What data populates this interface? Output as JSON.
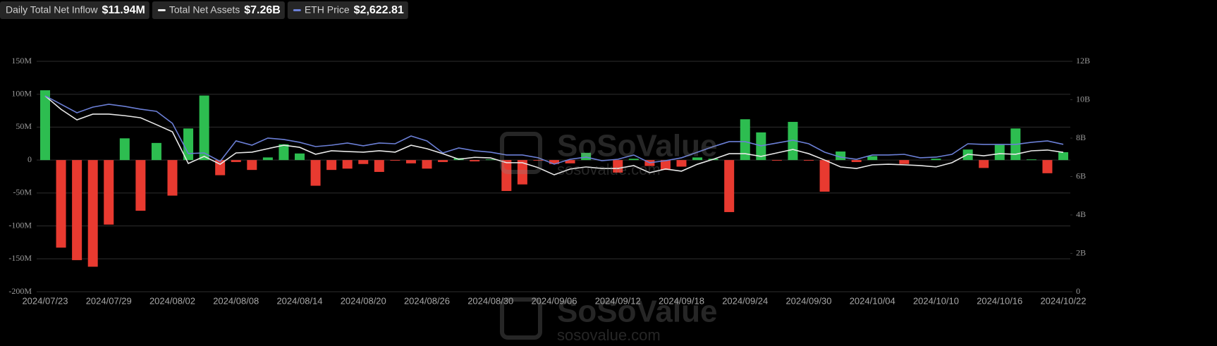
{
  "chart_data": {
    "type": "bar",
    "legend": [
      {
        "label": "Daily Total Net Inflow",
        "value": "$11.94M"
      },
      {
        "label": "Total Net Assets",
        "value": "$7.26B"
      },
      {
        "label": "ETH Price",
        "value": "$2,622.81"
      }
    ],
    "watermark": "SoSoValue",
    "watermark_url": "sosovalue.com",
    "categories": [
      "2024/07/23",
      null,
      null,
      null,
      "2024/07/29",
      null,
      null,
      null,
      "2024/08/02",
      null,
      null,
      null,
      "2024/08/08",
      null,
      null,
      null,
      "2024/08/14",
      null,
      null,
      null,
      "2024/08/20",
      null,
      null,
      null,
      "2024/08/26",
      null,
      null,
      null,
      "2024/08/30",
      null,
      null,
      null,
      "2024/09/06",
      null,
      null,
      null,
      "2024/09/12",
      null,
      null,
      null,
      "2024/09/18",
      null,
      null,
      null,
      "2024/09/24",
      null,
      null,
      null,
      "2024/09/30",
      null,
      null,
      null,
      "2024/10/04",
      null,
      null,
      null,
      "2024/10/10",
      null,
      null,
      null,
      "2024/10/16",
      null,
      null,
      null,
      "2024/10/22"
    ],
    "positive_color": "#2dbd50",
    "negative_color": "#e83a30",
    "series": [
      {
        "name": "Daily Total Net Inflow",
        "axis": "y",
        "values": [
          106,
          -133,
          -152,
          -162,
          -98,
          33,
          -77,
          26,
          -54,
          48,
          98,
          -23,
          -3,
          -15,
          4,
          24,
          10,
          -39,
          -15,
          -13,
          -6,
          -18,
          -1,
          -5,
          -13,
          -3,
          3,
          -2,
          1,
          -47,
          -37,
          -1,
          -6,
          -5,
          11,
          0,
          -19,
          2,
          -9,
          -15,
          -10,
          4,
          2,
          -79,
          62,
          42,
          -1,
          58,
          -1,
          -48,
          13,
          -3,
          6,
          0,
          -6,
          0,
          2,
          0,
          16,
          -12,
          23,
          48,
          1,
          -20,
          11.94
        ]
      },
      {
        "name": "Total Net Assets",
        "axis": "y2",
        "color": "#e8e8e8",
        "values": [
          10.2,
          9.5,
          8.95,
          9.25,
          9.25,
          9.17,
          9.06,
          8.7,
          8.33,
          6.68,
          7.05,
          6.64,
          7.23,
          7.27,
          7.45,
          7.63,
          7.52,
          7.16,
          7.34,
          7.3,
          7.27,
          7.34,
          7.27,
          7.63,
          7.45,
          7.19,
          6.9,
          7.0,
          6.97,
          6.72,
          6.72,
          6.46,
          6.09,
          6.39,
          6.5,
          6.42,
          6.42,
          6.57,
          6.2,
          6.39,
          6.28,
          6.64,
          6.9,
          7.19,
          7.19,
          7.05,
          7.23,
          7.41,
          7.19,
          6.86,
          6.5,
          6.42,
          6.61,
          6.64,
          6.61,
          6.57,
          6.5,
          6.72,
          7.16,
          7.08,
          7.19,
          7.16,
          7.34,
          7.38,
          7.26
        ]
      },
      {
        "name": "ETH Price",
        "axis": "y3",
        "color": "#6b7fd6",
        "values": [
          3486,
          3336,
          3185,
          3285,
          3336,
          3298,
          3248,
          3210,
          2997,
          2458,
          2470,
          2320,
          2684,
          2608,
          2734,
          2709,
          2659,
          2583,
          2608,
          2646,
          2596,
          2646,
          2633,
          2771,
          2684,
          2470,
          2558,
          2508,
          2483,
          2433,
          2433,
          2383,
          2270,
          2357,
          2395,
          2332,
          2357,
          2433,
          2295,
          2332,
          2383,
          2483,
          2583,
          2671,
          2671,
          2596,
          2646,
          2696,
          2633,
          2483,
          2395,
          2357,
          2433,
          2433,
          2445,
          2383,
          2395,
          2445,
          2633,
          2621,
          2621,
          2621,
          2659,
          2684,
          2622.81
        ]
      }
    ],
    "ylim": [
      -200,
      150
    ],
    "yticks": [
      {
        "value": -200,
        "label": "-200M"
      },
      {
        "value": -150,
        "label": "-150M"
      },
      {
        "value": -100,
        "label": "-100M"
      },
      {
        "value": -50,
        "label": "-50M"
      },
      0,
      {
        "value": 50,
        "label": "50M"
      },
      {
        "value": 100,
        "label": "100M"
      },
      {
        "value": 150,
        "label": "150M"
      }
    ],
    "y2lim": [
      0,
      12
    ],
    "y2ticks": [
      0,
      {
        "value": 2,
        "label": "2B"
      },
      {
        "value": 4,
        "label": "4B"
      },
      {
        "value": 6,
        "label": "6B"
      },
      {
        "value": 8,
        "label": "8B"
      },
      {
        "value": 10,
        "label": "10B"
      },
      {
        "value": 12,
        "label": "12B"
      }
    ],
    "y3lim": [
      0,
      4100
    ],
    "grid": true
  }
}
